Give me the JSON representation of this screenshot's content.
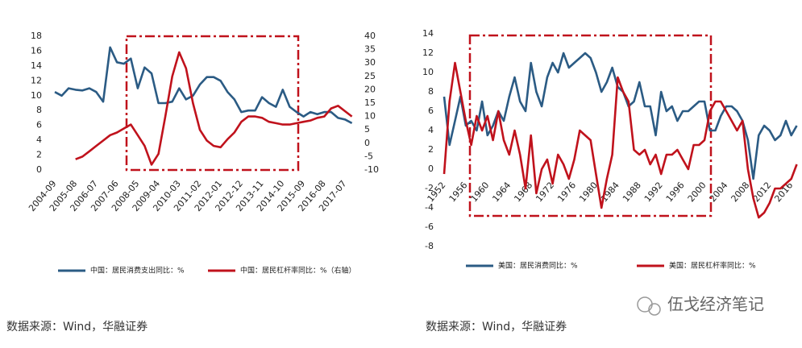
{
  "chart_data": [
    {
      "type": "line",
      "categories": [
        "2004-09",
        null,
        null,
        "2005-08",
        null,
        null,
        "2006-07",
        null,
        null,
        "2007-06",
        null,
        null,
        "2008-05",
        null,
        null,
        "2009-04",
        null,
        null,
        "2010-03",
        null,
        null,
        "2011-02",
        null,
        null,
        "2012-01",
        null,
        null,
        "2012-12",
        null,
        null,
        "2013-11",
        null,
        null,
        "2014-10",
        null,
        null,
        "2015-09",
        null,
        null,
        "2016-08",
        null,
        null,
        "2017-07",
        null
      ],
      "series": [
        {
          "name": "中国：居民消费支出同比：%",
          "color": "#2b5b84",
          "values": [
            10.5,
            10,
            11,
            10.8,
            10.7,
            11,
            10.5,
            9.2,
            16.5,
            14.5,
            14.3,
            15,
            11,
            13.8,
            13,
            9,
            9,
            9.2,
            11,
            9.5,
            10,
            11.5,
            12.5,
            12.5,
            12,
            10.5,
            9.5,
            7.8,
            8,
            8,
            9.8,
            9,
            8.5,
            10.8,
            8.5,
            7.8,
            7.2,
            7.8,
            7.5,
            7.8,
            7.8,
            7,
            6.8,
            6.3
          ]
        },
        {
          "name": "中国：居民杠杆率同比：%（右轴）",
          "color": "#c0121c",
          "axis": "y2",
          "values": [
            null,
            null,
            null,
            -6,
            -5,
            -3,
            -1,
            1,
            3,
            4,
            5.5,
            7,
            3,
            -1,
            -8,
            -4,
            10,
            25,
            34,
            28,
            15,
            5,
            1,
            -1,
            -1.5,
            1.5,
            4,
            8,
            10,
            10,
            9.5,
            8,
            7.5,
            7,
            7,
            7.5,
            8,
            8.5,
            9.5,
            10,
            13,
            14,
            12,
            10
          ]
        }
      ],
      "ylim": [
        0,
        18
      ],
      "yticks": [
        0,
        2,
        4,
        6,
        8,
        10,
        12,
        14,
        16,
        18
      ],
      "y2lim": [
        -10,
        40
      ],
      "y2ticks": [
        -10,
        -5,
        0,
        5,
        10,
        15,
        20,
        25,
        30,
        35,
        40
      ],
      "source": "数据来源：Wind，华融证券"
    },
    {
      "type": "line",
      "categories": [
        "1952",
        null,
        null,
        null,
        "1956",
        null,
        null,
        null,
        "1960",
        null,
        null,
        null,
        "1964",
        null,
        null,
        null,
        "1968",
        null,
        null,
        null,
        "1972",
        null,
        null,
        null,
        "1976",
        null,
        null,
        null,
        "1980",
        null,
        null,
        null,
        "1984",
        null,
        null,
        null,
        "1988",
        null,
        null,
        null,
        "1992",
        null,
        null,
        null,
        "1996",
        null,
        null,
        null,
        "2000",
        null,
        null,
        null,
        "2004",
        null,
        null,
        null,
        "2008",
        null,
        null,
        null,
        "2012",
        null,
        null,
        null,
        "2016",
        null
      ],
      "series": [
        {
          "name": "美国：居民消费同比：%",
          "color": "#2b5b84",
          "values": [
            7.5,
            2.5,
            5,
            7.5,
            4.5,
            5,
            4,
            7,
            3.5,
            4.5,
            6,
            5,
            7.5,
            9.5,
            7,
            6,
            11,
            8,
            6.5,
            9.5,
            11,
            10,
            12,
            10.5,
            11,
            11.5,
            12,
            11.5,
            10,
            8,
            9,
            10.5,
            8.5,
            8,
            6.5,
            7,
            9,
            6.5,
            6.5,
            3.5,
            8,
            6,
            6.5,
            5,
            6,
            6,
            6.5,
            7,
            7,
            4,
            4,
            5.5,
            6.5,
            6.5,
            6,
            5,
            3,
            -1,
            3.5,
            4.5,
            4,
            3,
            3.5,
            5,
            3.5,
            4.5
          ]
        },
        {
          "name": "美国：居民杠杆率同比：%",
          "color": "#c0121c",
          "values": [
            -0.5,
            7,
            11,
            8,
            5,
            2.5,
            5.5,
            4,
            5.5,
            3,
            6,
            3,
            1.5,
            4,
            1.5,
            -2,
            3.5,
            -2.5,
            0,
            1,
            -1.5,
            1.5,
            0.5,
            -1,
            1,
            4,
            3.5,
            3,
            -0.5,
            -4,
            -1,
            1.5,
            9.5,
            8,
            7,
            2,
            1.5,
            2,
            0.5,
            1.5,
            -0.5,
            1.5,
            1.5,
            2,
            1,
            0,
            2.5,
            2.5,
            3,
            6,
            7,
            7,
            6,
            5,
            4,
            5,
            0,
            -3,
            -5,
            -4.5,
            -3.5,
            -2,
            -2,
            -1.5,
            -1,
            0.5
          ]
        }
      ],
      "ylim": [
        -8,
        14
      ],
      "yticks": [
        -8,
        -6,
        -4,
        -2,
        0,
        2,
        4,
        6,
        8,
        10,
        12,
        14
      ],
      "source": "数据来源：Wind，华融证券"
    }
  ],
  "watermark": "伍戈经济笔记"
}
